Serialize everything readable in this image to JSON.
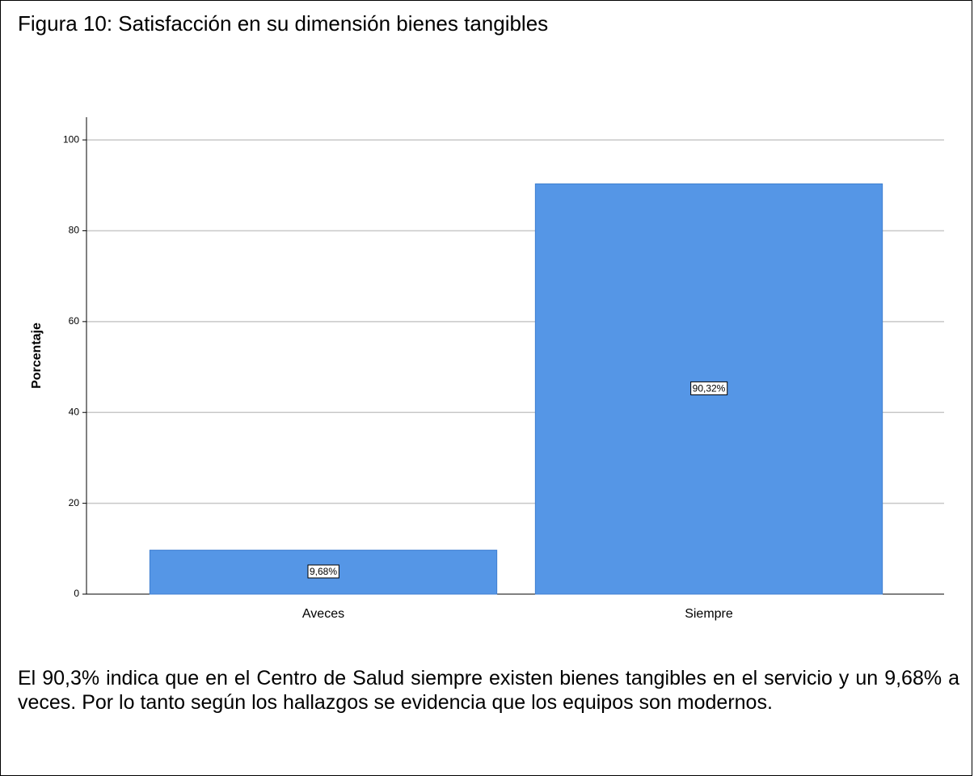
{
  "chart_data": {
    "type": "bar",
    "title": "Figura 10: Satisfacción en su dimensión bienes tangibles",
    "categories": [
      "Aveces",
      "Siempre"
    ],
    "values": [
      9.68,
      90.32
    ],
    "value_labels": [
      "9,68%",
      "90,32%"
    ],
    "color": "#5596e6",
    "ylabel": "Porcentaje",
    "ylim": [
      0,
      105
    ],
    "yticks": [
      0,
      20,
      40,
      60,
      80,
      100
    ],
    "grid": true,
    "description": "El 90,3% indica que en el Centro de Salud siempre existen bienes tangibles en el servicio y un 9,68% a veces. Por lo tanto según los hallazgos se evidencia que los equipos son modernos."
  }
}
